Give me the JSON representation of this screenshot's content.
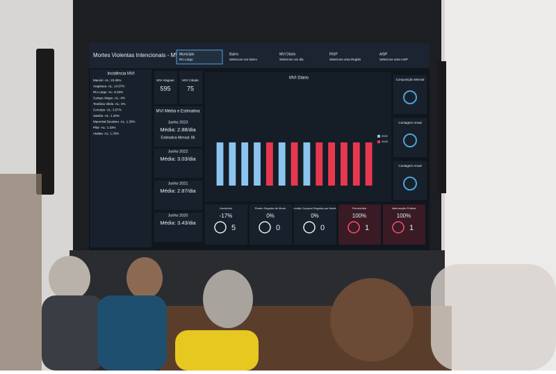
{
  "header": {
    "title": "Mortes Violentas Intencionais - MVI",
    "filters": [
      {
        "label": "Município",
        "value": "Rio Largo"
      },
      {
        "label": "Bairro",
        "value": "Selecione um bairro"
      },
      {
        "label": "MVI Diário",
        "value": "Selecione um dia"
      },
      {
        "label": "RISP",
        "value": "Selecione uma Região"
      },
      {
        "label": "AISP",
        "value": "Selecione uma AISP"
      }
    ]
  },
  "incidence": {
    "title": "Incidência MVI",
    "rows": [
      "Maceió -AL: 23.35%",
      "Arapiraca -AL: 14.67%",
      "Rio Largo -AL: 8.33%",
      "Campo Alegre -AL: 4%",
      "Teotônio Vilela -AL: 4%",
      "Coruripe -AL: 3.67%",
      "Satuba -AL: 1.33%",
      "Marechal Deodoro -AL: 1.33%",
      "Pilar -AL: 1.33%",
      "Atalaia -AL: 1.33%"
    ]
  },
  "stats": [
    {
      "label": "MVI Alagoas",
      "value": "595"
    },
    {
      "label": "MVI Cidade",
      "value": "75"
    }
  ],
  "averages": {
    "title": "MVI Média e Estimativa",
    "items": [
      {
        "period": "Junho 2023",
        "mean": "Média: 2.88/dia",
        "estimate": "Estimativa Mensal: 86"
      },
      {
        "period": "Junho 2022",
        "mean": "Média: 3.03/dia"
      },
      {
        "period": "Junho 2021",
        "mean": "Média: 2.87/dia"
      },
      {
        "period": "Junho 2020",
        "mean": "Média: 3.43/dia"
      }
    ]
  },
  "chart": {
    "type": "bar",
    "title": "MVI Diário",
    "values": [
      3,
      3,
      3,
      3,
      3,
      3,
      3,
      3,
      3,
      3,
      3,
      3,
      3
    ],
    "colors": [
      "#8cc4f0",
      "#8cc4f0",
      "#8cc4f0",
      "#8cc4f0",
      "#e8384f",
      "#8cc4f0",
      "#e8384f",
      "#8cc4f0",
      "#e8384f",
      "#e8384f",
      "#e8384f",
      "#e8384f",
      "#e8384f"
    ],
    "ylim": [
      0,
      7
    ],
    "legend": [
      {
        "name": "2022",
        "color": "#8cc4f0"
      },
      {
        "name": "2023",
        "color": "#e8384f"
      }
    ]
  },
  "kpis": [
    {
      "label": "Homicídio",
      "change": "-17%",
      "value": "5"
    },
    {
      "label": "Roubo Seguido de Morte",
      "change": "0%",
      "value": "0"
    },
    {
      "label": "Lesão Corporal Seguida por Morte",
      "change": "0%",
      "value": "0"
    },
    {
      "label": "Feminicídio",
      "change": "100%",
      "value": "1"
    },
    {
      "label": "Intervenção Policial",
      "change": "100%",
      "value": "1"
    }
  ],
  "side": [
    "Composição Mensal",
    "Contagem Anual",
    "Contagem Anual"
  ]
}
